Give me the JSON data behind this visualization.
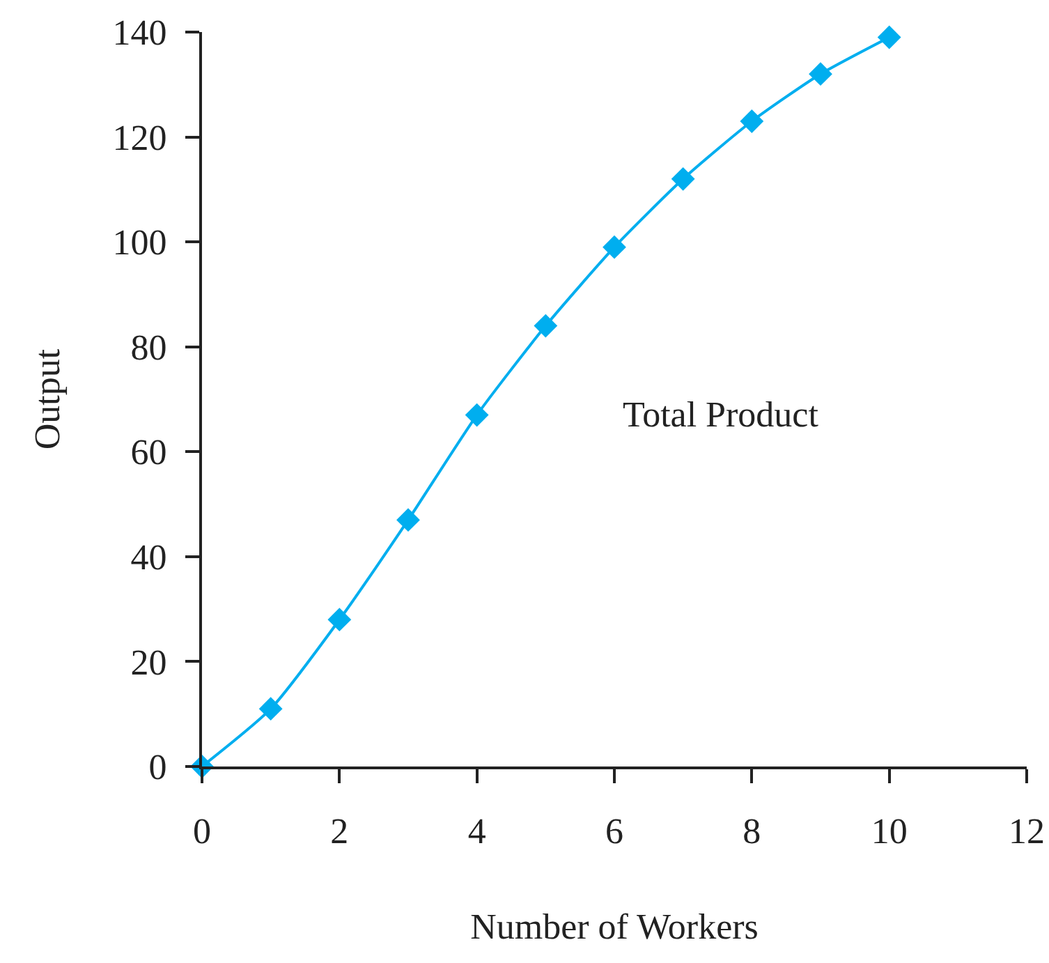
{
  "chart_data": {
    "type": "line",
    "xlabel": "Number of Workers",
    "ylabel": "Output",
    "x": [
      0,
      1,
      2,
      3,
      4,
      5,
      6,
      7,
      8,
      9,
      10
    ],
    "series": [
      {
        "color": "#00aeef",
        "values": [
          0,
          11,
          28,
          47,
          67,
          84,
          99,
          112,
          123,
          132,
          139
        ]
      }
    ],
    "xlim": [
      0,
      12
    ],
    "xticks": [
      0,
      2,
      4,
      6,
      8,
      10,
      12
    ],
    "ylim": [
      0,
      140
    ],
    "yticks": [
      0,
      20,
      40,
      60,
      80,
      100,
      120,
      140
    ],
    "annotations": [
      "Total Product"
    ],
    "grid": false,
    "marker": "diamond",
    "line_style": "solid"
  }
}
